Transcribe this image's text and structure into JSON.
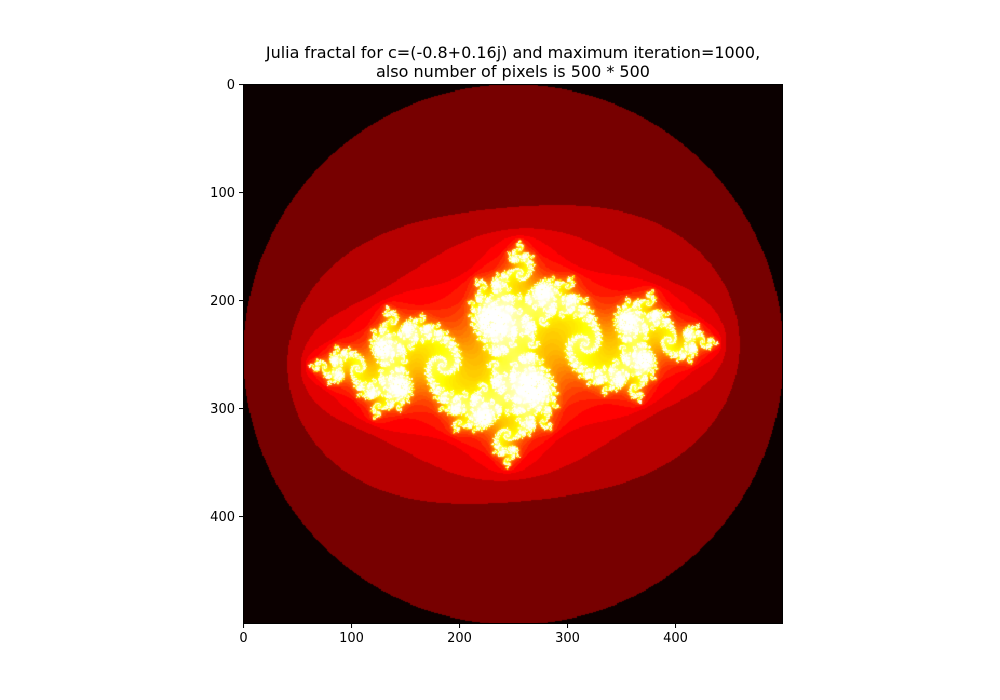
{
  "chart_data": {
    "type": "heatmap",
    "title": "Julia fractal for c=(-0.8+0.16j) and maximum iteration=1000,",
    "subtitle": "also number of pixels is 500 * 500",
    "xlabel": "",
    "ylabel": "",
    "colormap": "hot",
    "c": {
      "real": -0.8,
      "imag": 0.16
    },
    "max_iter": 1000,
    "pixels": [
      500,
      500
    ],
    "xlim": [
      0,
      500
    ],
    "ylim": [
      500,
      0
    ],
    "x_ticks": [
      0,
      100,
      200,
      300,
      400
    ],
    "y_ticks": [
      0,
      100,
      200,
      300,
      400
    ],
    "grid": false,
    "colors": {
      "background": "#0b0000",
      "deep": "#4a0000",
      "mid": "#b30000",
      "bright": "#ff2a00",
      "peak": "#ffff33"
    }
  }
}
